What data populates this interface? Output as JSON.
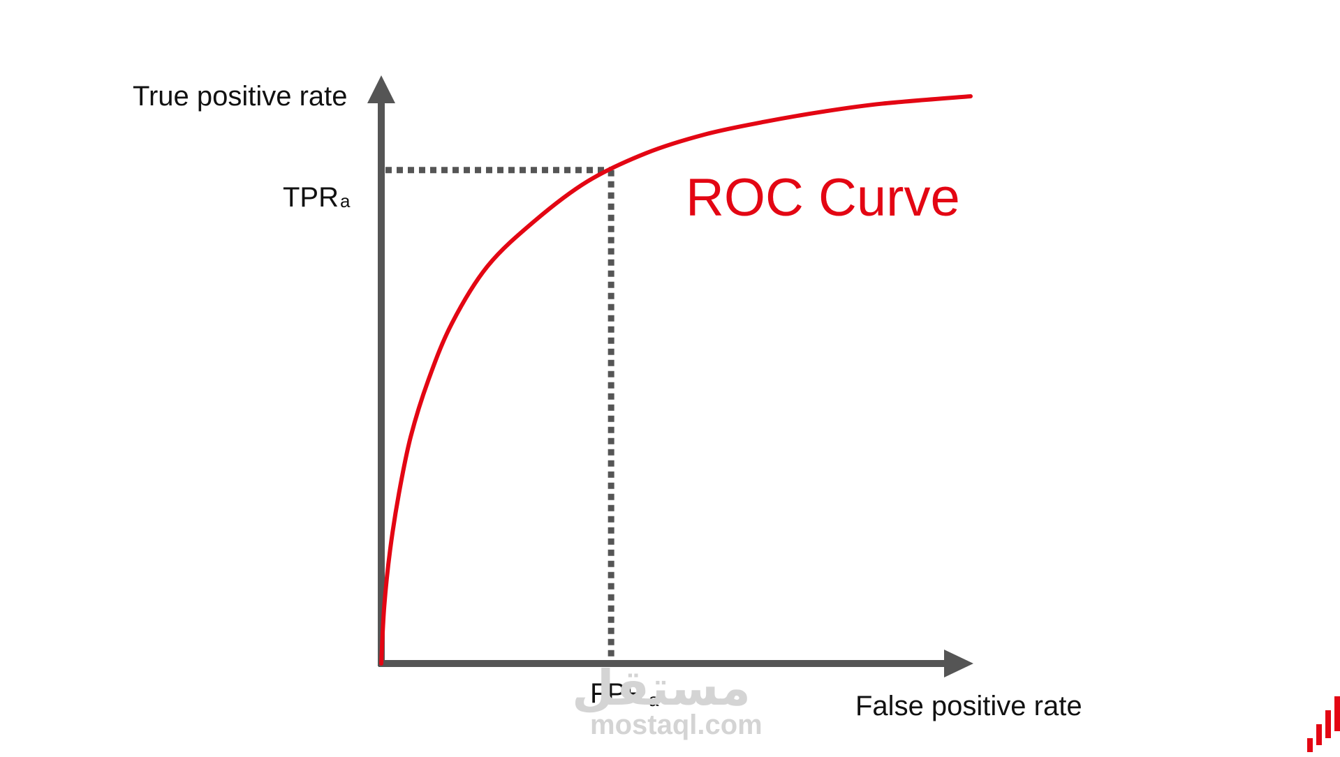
{
  "chart_data": {
    "type": "line",
    "title": "",
    "xlabel": "False positive rate",
    "ylabel": "True positive rate",
    "xlim": [
      0,
      1
    ],
    "ylim": [
      0,
      1
    ],
    "grid": false,
    "series": [
      {
        "name": "ROC Curve",
        "color": "#e30613",
        "points": [
          [
            0.0,
            0.0
          ],
          [
            0.005,
            0.1
          ],
          [
            0.015,
            0.2
          ],
          [
            0.03,
            0.3
          ],
          [
            0.05,
            0.4
          ],
          [
            0.08,
            0.5
          ],
          [
            0.12,
            0.6
          ],
          [
            0.18,
            0.7
          ],
          [
            0.26,
            0.78
          ],
          [
            0.35,
            0.85
          ],
          [
            0.45,
            0.9
          ],
          [
            0.55,
            0.933
          ],
          [
            0.65,
            0.955
          ],
          [
            0.75,
            0.973
          ],
          [
            0.85,
            0.987
          ],
          [
            1.0,
            1.0
          ]
        ]
      }
    ],
    "marker": {
      "fpr": 0.39,
      "tpr": 0.87,
      "x_label": "FPR",
      "x_label_sub": "a",
      "y_label": "TPR",
      "y_label_sub": "a",
      "line_color": "#555555"
    },
    "axis_color": "#555555"
  },
  "watermark": {
    "arabic": "مستقل",
    "latin": "mostaql.com",
    "color": "#d4d4d4",
    "icon": "bar-chart-icon",
    "icon_color": "#e30613"
  }
}
